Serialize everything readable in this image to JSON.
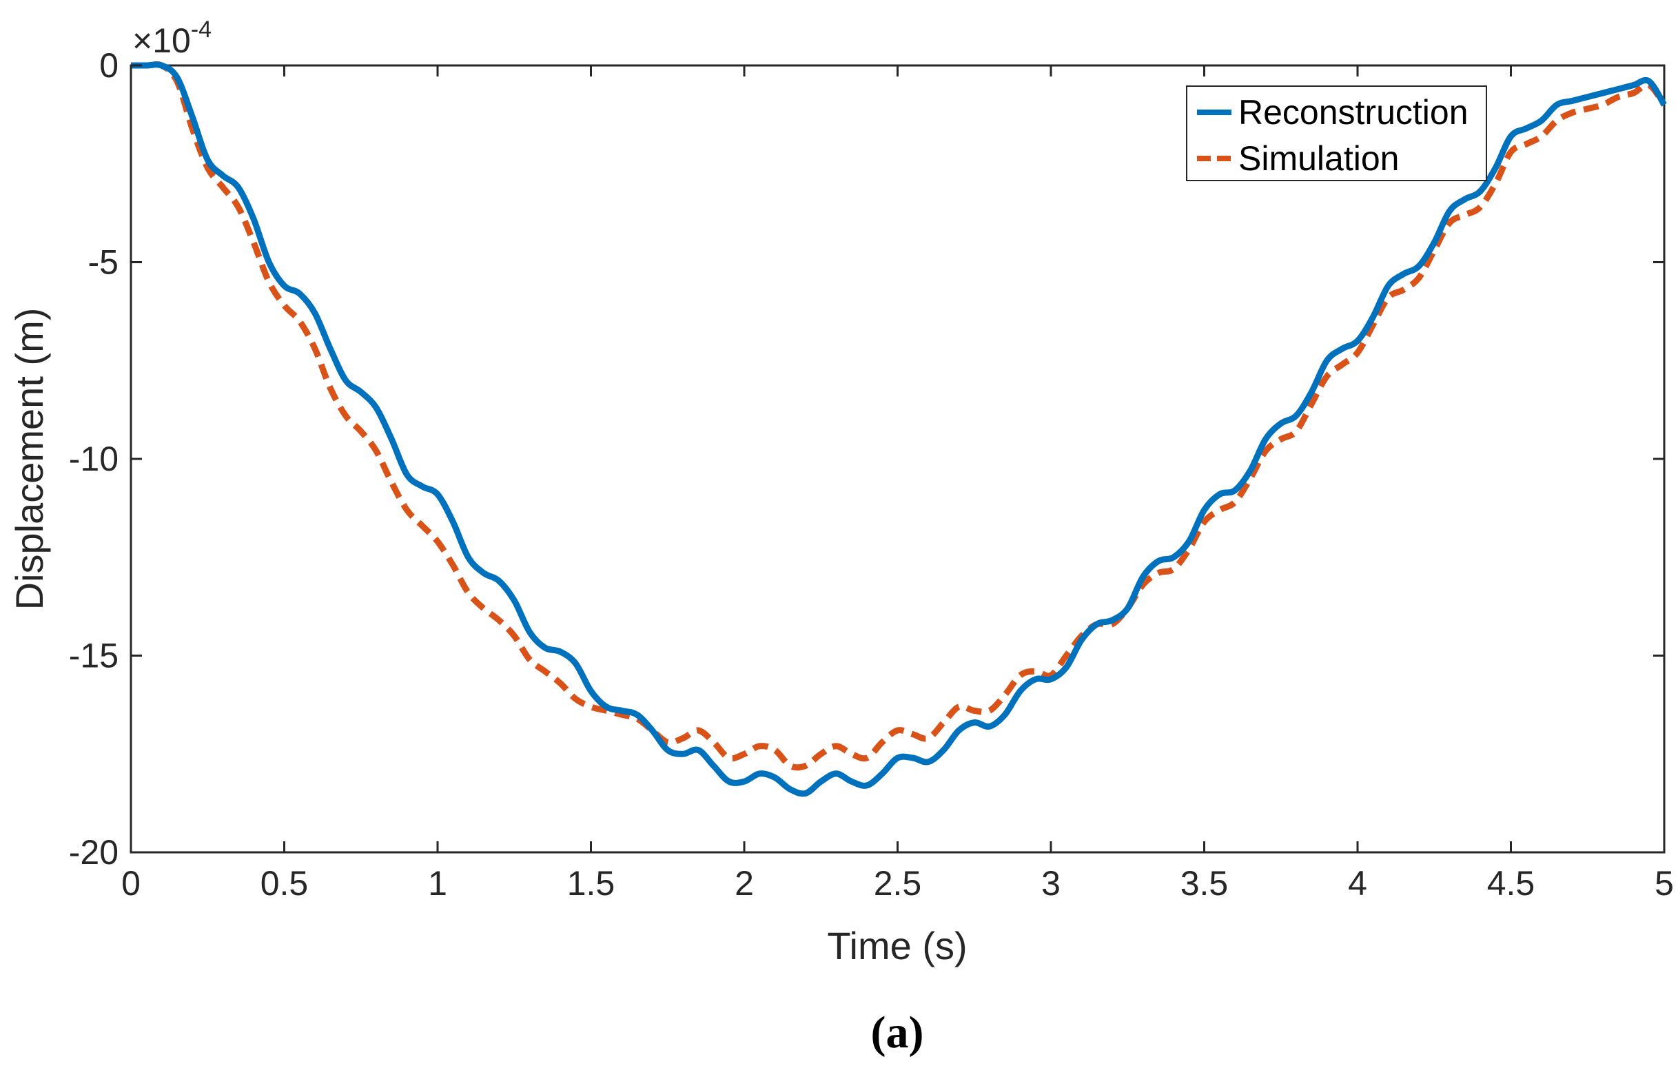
{
  "chart_data": {
    "type": "line",
    "title": "",
    "xlabel": "Time (s)",
    "ylabel": "Displacement (m)",
    "y_exponent_label": "×10",
    "y_exponent_power": "-4",
    "xlim": [
      0,
      5
    ],
    "ylim": [
      -20,
      0
    ],
    "x_ticks": [
      0,
      0.5,
      1,
      1.5,
      2,
      2.5,
      3,
      3.5,
      4,
      4.5,
      5
    ],
    "x_tick_labels": [
      "0",
      "0.5",
      "1",
      "1.5",
      "2",
      "2.5",
      "3",
      "3.5",
      "4",
      "4.5",
      "5"
    ],
    "y_ticks": [
      0,
      -5,
      -10,
      -15,
      -20
    ],
    "y_tick_labels": [
      "0",
      "-5",
      "-10",
      "-15",
      "-20"
    ],
    "grid": false,
    "legend_position": "top-right",
    "caption": "(a)",
    "series": [
      {
        "name": "Reconstruction",
        "color": "#0072BD",
        "style": "solid",
        "x": [
          0,
          0.05,
          0.1,
          0.15,
          0.2,
          0.25,
          0.3,
          0.35,
          0.4,
          0.45,
          0.5,
          0.55,
          0.6,
          0.65,
          0.7,
          0.75,
          0.8,
          0.85,
          0.9,
          0.95,
          1.0,
          1.05,
          1.1,
          1.15,
          1.2,
          1.25,
          1.3,
          1.35,
          1.4,
          1.45,
          1.5,
          1.55,
          1.6,
          1.65,
          1.7,
          1.75,
          1.8,
          1.85,
          1.9,
          1.95,
          2.0,
          2.05,
          2.1,
          2.15,
          2.2,
          2.25,
          2.3,
          2.35,
          2.4,
          2.45,
          2.5,
          2.55,
          2.6,
          2.65,
          2.7,
          2.75,
          2.8,
          2.85,
          2.9,
          2.95,
          3.0,
          3.05,
          3.1,
          3.15,
          3.2,
          3.25,
          3.3,
          3.35,
          3.4,
          3.45,
          3.5,
          3.55,
          3.6,
          3.65,
          3.7,
          3.75,
          3.8,
          3.85,
          3.9,
          3.95,
          4.0,
          4.05,
          4.1,
          4.15,
          4.2,
          4.25,
          4.3,
          4.35,
          4.4,
          4.45,
          4.5,
          4.55,
          4.6,
          4.65,
          4.7,
          4.75,
          4.8,
          4.85,
          4.9,
          4.95,
          5.0
        ],
        "y": [
          0,
          0,
          0,
          -0.3,
          -1.3,
          -2.4,
          -2.8,
          -3.1,
          -3.9,
          -5.0,
          -5.6,
          -5.8,
          -6.3,
          -7.2,
          -8.0,
          -8.3,
          -8.7,
          -9.5,
          -10.4,
          -10.7,
          -10.9,
          -11.6,
          -12.5,
          -12.9,
          -13.1,
          -13.6,
          -14.4,
          -14.8,
          -14.9,
          -15.2,
          -15.9,
          -16.3,
          -16.4,
          -16.5,
          -16.9,
          -17.4,
          -17.5,
          -17.4,
          -17.8,
          -18.2,
          -18.2,
          -18.0,
          -18.1,
          -18.4,
          -18.5,
          -18.2,
          -18.0,
          -18.2,
          -18.3,
          -18.0,
          -17.6,
          -17.6,
          -17.7,
          -17.4,
          -16.9,
          -16.7,
          -16.8,
          -16.5,
          -15.9,
          -15.6,
          -15.6,
          -15.3,
          -14.6,
          -14.2,
          -14.1,
          -13.8,
          -13.0,
          -12.6,
          -12.5,
          -12.1,
          -11.3,
          -10.9,
          -10.8,
          -10.3,
          -9.5,
          -9.1,
          -8.9,
          -8.3,
          -7.5,
          -7.2,
          -7.0,
          -6.4,
          -5.6,
          -5.3,
          -5.1,
          -4.5,
          -3.7,
          -3.4,
          -3.2,
          -2.6,
          -1.8,
          -1.6,
          -1.4,
          -1.0,
          -0.9,
          -0.8,
          -0.7,
          -0.6,
          -0.5,
          -0.4,
          -1.0
        ]
      },
      {
        "name": "Simulation",
        "color": "#D95319",
        "style": "dashed",
        "x": [
          0,
          0.05,
          0.1,
          0.15,
          0.2,
          0.25,
          0.3,
          0.35,
          0.4,
          0.45,
          0.5,
          0.55,
          0.6,
          0.65,
          0.7,
          0.75,
          0.8,
          0.85,
          0.9,
          0.95,
          1.0,
          1.05,
          1.1,
          1.15,
          1.2,
          1.25,
          1.3,
          1.35,
          1.4,
          1.45,
          1.5,
          1.55,
          1.6,
          1.65,
          1.7,
          1.75,
          1.8,
          1.85,
          1.9,
          1.95,
          2.0,
          2.05,
          2.1,
          2.15,
          2.2,
          2.25,
          2.3,
          2.35,
          2.4,
          2.45,
          2.5,
          2.55,
          2.6,
          2.65,
          2.7,
          2.75,
          2.8,
          2.85,
          2.9,
          2.95,
          3.0,
          3.05,
          3.1,
          3.15,
          3.2,
          3.25,
          3.3,
          3.35,
          3.4,
          3.45,
          3.5,
          3.55,
          3.6,
          3.65,
          3.7,
          3.75,
          3.8,
          3.85,
          3.9,
          3.95,
          4.0,
          4.05,
          4.1,
          4.15,
          4.2,
          4.25,
          4.3,
          4.35,
          4.4,
          4.45,
          4.5,
          4.55,
          4.6,
          4.65,
          4.7,
          4.75,
          4.8,
          4.85,
          4.9,
          4.95,
          5.0
        ],
        "y": [
          0,
          0,
          0,
          -0.4,
          -1.6,
          -2.6,
          -3.1,
          -3.6,
          -4.5,
          -5.5,
          -6.1,
          -6.5,
          -7.2,
          -8.2,
          -8.9,
          -9.3,
          -9.8,
          -10.6,
          -11.3,
          -11.7,
          -12.1,
          -12.7,
          -13.4,
          -13.8,
          -14.1,
          -14.5,
          -15.1,
          -15.4,
          -15.7,
          -16.1,
          -16.3,
          -16.4,
          -16.5,
          -16.6,
          -16.9,
          -17.2,
          -17.1,
          -16.9,
          -17.2,
          -17.6,
          -17.5,
          -17.3,
          -17.4,
          -17.8,
          -17.8,
          -17.5,
          -17.3,
          -17.5,
          -17.6,
          -17.2,
          -16.9,
          -17.0,
          -17.1,
          -16.7,
          -16.3,
          -16.4,
          -16.4,
          -16.0,
          -15.5,
          -15.4,
          -15.5,
          -15.0,
          -14.5,
          -14.2,
          -14.2,
          -13.8,
          -13.2,
          -12.9,
          -12.8,
          -12.3,
          -11.6,
          -11.3,
          -11.1,
          -10.5,
          -9.8,
          -9.5,
          -9.3,
          -8.6,
          -7.9,
          -7.6,
          -7.3,
          -6.6,
          -5.9,
          -5.7,
          -5.4,
          -4.7,
          -4.0,
          -3.8,
          -3.6,
          -3.0,
          -2.2,
          -2.0,
          -1.8,
          -1.4,
          -1.2,
          -1.1,
          -1.0,
          -0.8,
          -0.7,
          -0.5,
          -1.0
        ]
      }
    ]
  }
}
